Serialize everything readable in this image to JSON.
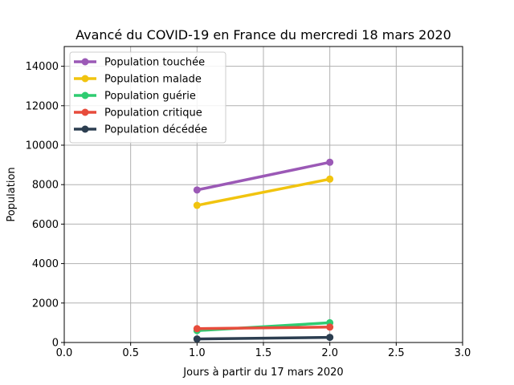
{
  "chart_data": {
    "type": "line",
    "title": "Avancé du COVID-19 en France du mercredi 18 mars 2020",
    "xlabel": "Jours à partir du 17 mars 2020",
    "ylabel": "Population",
    "xlim": [
      0,
      3
    ],
    "ylim": [
      0,
      15000
    ],
    "xticks": [
      "0.0",
      "0.5",
      "1.0",
      "1.5",
      "2.0",
      "2.5",
      "3.0"
    ],
    "xtick_values": [
      0,
      0.5,
      1,
      1.5,
      2,
      2.5,
      3
    ],
    "yticks": [
      "0",
      "2000",
      "4000",
      "6000",
      "8000",
      "10000",
      "12000",
      "14000"
    ],
    "ytick_values": [
      0,
      2000,
      4000,
      6000,
      8000,
      10000,
      12000,
      14000
    ],
    "grid": true,
    "legend_position": "top-left",
    "x": [
      1,
      2
    ],
    "series": [
      {
        "name": "Population touchée",
        "color": "#9b59b6",
        "values": [
          7730,
          9134
        ]
      },
      {
        "name": "Population malade",
        "color": "#f1c40f",
        "values": [
          6950,
          8280
        ]
      },
      {
        "name": "Population guérie",
        "color": "#2ecc71",
        "values": [
          600,
          1000
        ]
      },
      {
        "name": "Population critique",
        "color": "#e74c3c",
        "values": [
          700,
          780
        ]
      },
      {
        "name": "Population décédée",
        "color": "#2c3e50",
        "values": [
          180,
          260
        ]
      }
    ]
  }
}
